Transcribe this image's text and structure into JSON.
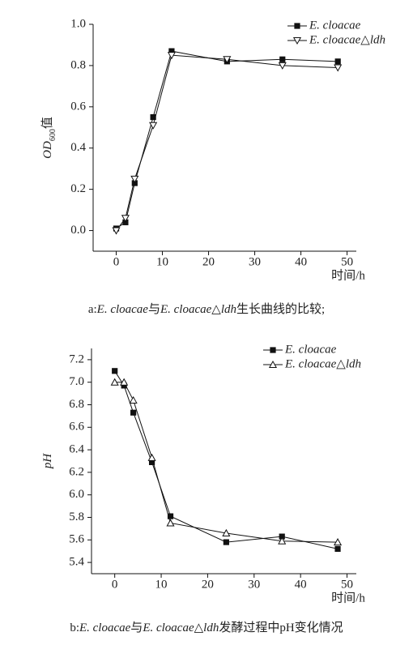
{
  "chart_data": [
    {
      "type": "line",
      "y_label": [
        "OD",
        "600",
        "值"
      ],
      "x_label": "时间/h",
      "caption": [
        "a:",
        "E. cloacae",
        "与",
        "E. cloacae△ldh",
        "生长曲线的比较;"
      ],
      "x": [
        0,
        2,
        4,
        8,
        12,
        24,
        36,
        48
      ],
      "series": [
        {
          "name": "E. cloacae",
          "color": "#111111",
          "marker": "square",
          "values": [
            0.01,
            0.04,
            0.23,
            0.55,
            0.87,
            0.82,
            0.83,
            0.82
          ]
        },
        {
          "name": "E. cloacae△ldh",
          "color": "#111111",
          "marker": "triangle-down",
          "values": [
            0.0,
            0.06,
            0.25,
            0.51,
            0.85,
            0.83,
            0.8,
            0.79
          ]
        }
      ],
      "xlim": [
        -5,
        52
      ],
      "xticks": [
        0,
        10,
        20,
        30,
        40,
        50
      ],
      "ylim": [
        -0.1,
        1.0
      ],
      "yticks": [
        {
          "value": 0,
          "label": "0.0"
        },
        0.2,
        0.4,
        0.6,
        0.8,
        {
          "value": 1,
          "label": "1.0"
        }
      ],
      "legend": "upper right"
    },
    {
      "type": "line",
      "y_label": [
        "pH"
      ],
      "x_label": "时间/h",
      "caption": [
        "b:",
        "E. cloacae",
        "与",
        "E. cloacae△ldh",
        "发酵过程中pH变化情况"
      ],
      "x": [
        0,
        2,
        4,
        8,
        12,
        24,
        36,
        48
      ],
      "series": [
        {
          "name": "E. cloacae",
          "color": "#111111",
          "marker": "square",
          "values": [
            7.1,
            6.97,
            6.73,
            6.29,
            5.81,
            5.58,
            5.63,
            5.52
          ]
        },
        {
          "name": "E. cloacae△ldh",
          "color": "#111111",
          "marker": "triangle-up",
          "values": [
            7.0,
            7.0,
            6.84,
            6.33,
            5.75,
            5.66,
            5.59,
            5.58
          ]
        }
      ],
      "xlim": [
        -5,
        52
      ],
      "xticks": [
        0,
        10,
        20,
        30,
        40,
        50
      ],
      "ylim": [
        5.3,
        7.3
      ],
      "yticks": [
        5.4,
        5.6,
        5.8,
        {
          "value": 6,
          "label": "6.0"
        },
        6.2,
        6.4,
        6.6,
        6.8,
        {
          "value": 7,
          "label": "7.0"
        },
        7.2
      ],
      "legend": "upper right"
    }
  ]
}
